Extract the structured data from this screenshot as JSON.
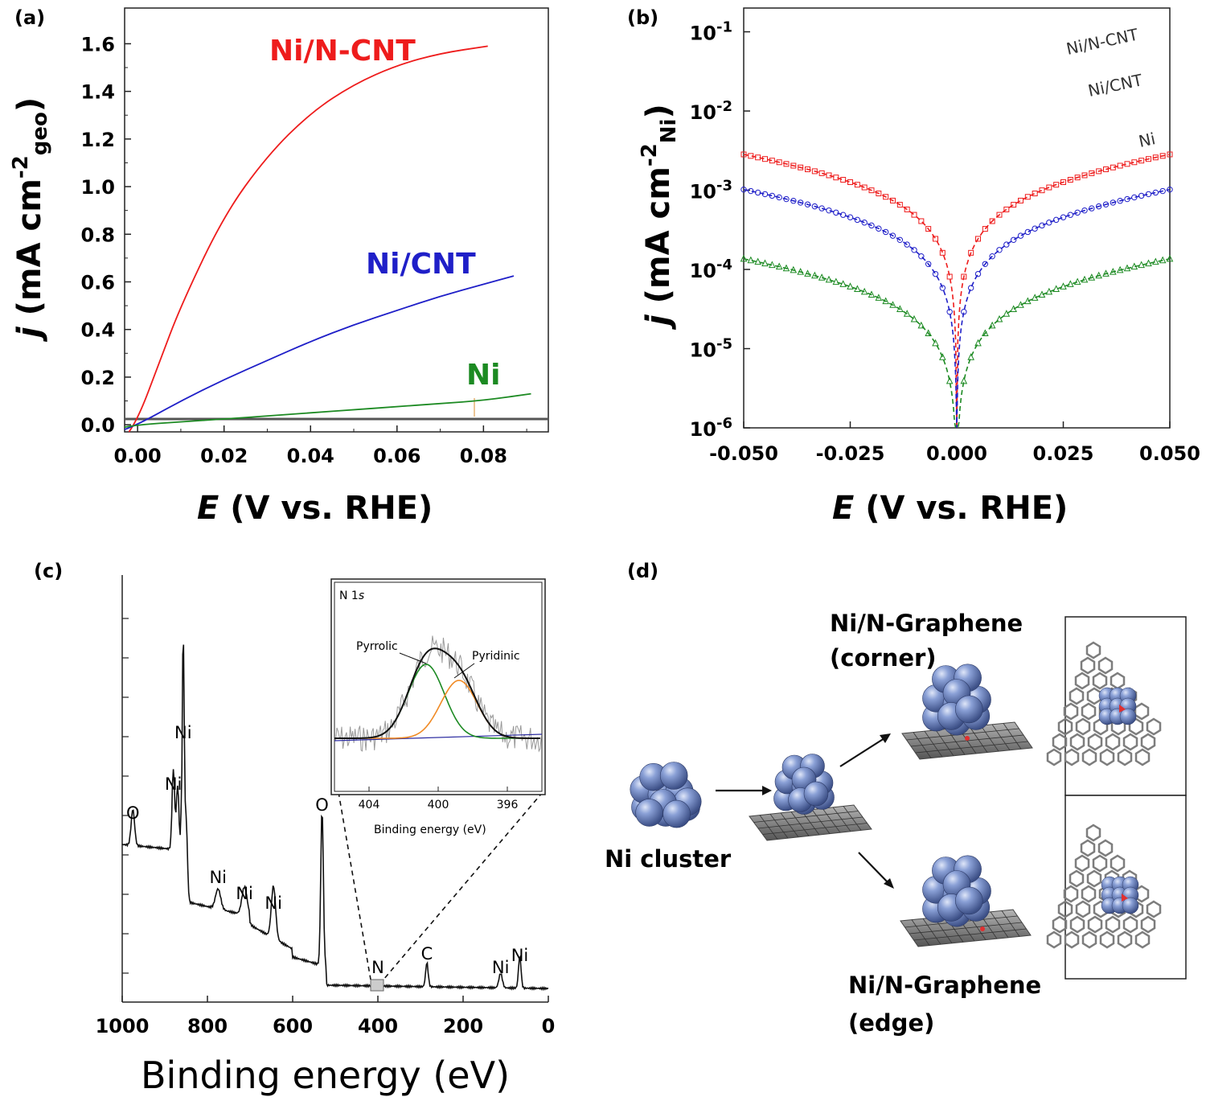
{
  "colors": {
    "red": "#ee1c1c",
    "blue": "#1f1fc8",
    "green": "#1c8a22",
    "black": "#111111",
    "sphere": "#6f86c4",
    "carbon": "#8a8a8a"
  },
  "panels": {
    "a": "(a)",
    "b": "(b)",
    "c": "(c)",
    "d": "(d)"
  },
  "chart_data": [
    {
      "id": "a",
      "type": "line",
      "xlabel_main": "E",
      "xlabel_unit": "(V vs. RHE)",
      "ylabel": "j (mA cm-2geo)",
      "ylabel_j": "j",
      "ylabel_unit": "mA cm",
      "ylabel_sup": "-2",
      "ylabel_sub": "geo",
      "xlim": [
        -0.003,
        0.095
      ],
      "ylim": [
        -0.03,
        1.75
      ],
      "xticks": [
        0.0,
        0.02,
        0.04,
        0.06,
        0.08
      ],
      "xtick_labels": [
        "0.00",
        "0.02",
        "0.04",
        "0.06",
        "0.08"
      ],
      "yticks": [
        0.0,
        0.2,
        0.4,
        0.6,
        0.8,
        1.0,
        1.2,
        1.4,
        1.6
      ],
      "ytick_labels": [
        "0.0",
        "0.2",
        "0.4",
        "0.6",
        "0.8",
        "1.0",
        "1.2",
        "1.4",
        "1.6"
      ],
      "series": [
        {
          "name": "Ni/N-CNT",
          "color": "#ee1c1c",
          "x": [
            -0.002,
            0.0,
            0.005,
            0.01,
            0.02,
            0.03,
            0.04,
            0.05,
            0.06,
            0.07,
            0.081
          ],
          "y": [
            -0.03,
            0.02,
            0.26,
            0.5,
            0.88,
            1.13,
            1.31,
            1.43,
            1.51,
            1.56,
            1.59
          ]
        },
        {
          "name": "Ni/CNT",
          "color": "#1f1fc8",
          "x": [
            -0.003,
            0.0,
            0.01,
            0.02,
            0.03,
            0.04,
            0.05,
            0.06,
            0.07,
            0.08,
            0.087
          ],
          "y": [
            -0.02,
            0.0,
            0.1,
            0.19,
            0.27,
            0.35,
            0.42,
            0.48,
            0.54,
            0.59,
            0.625
          ]
        },
        {
          "name": "Ni",
          "color": "#1c8a22",
          "x": [
            -0.003,
            0.0,
            0.01,
            0.02,
            0.03,
            0.04,
            0.05,
            0.06,
            0.07,
            0.08,
            0.091
          ],
          "y": [
            -0.01,
            0.0,
            0.012,
            0.024,
            0.037,
            0.05,
            0.063,
            0.076,
            0.089,
            0.102,
            0.13
          ]
        }
      ]
    },
    {
      "id": "b",
      "type": "scatter+line",
      "scale": "log",
      "xlabel_main": "E",
      "xlabel_unit": "(V vs. RHE)",
      "ylabel": "j (mA cm-2Ni)",
      "ylabel_j": "j",
      "ylabel_unit": "mA cm",
      "ylabel_sup": "-2",
      "ylabel_sub": "Ni",
      "xlim": [
        -0.05,
        0.05
      ],
      "ylim_exp": [
        -6,
        -0.7
      ],
      "xticks": [
        -0.05,
        -0.025,
        0.0,
        0.025,
        0.05
      ],
      "xtick_labels": [
        "-0.050",
        "-0.025",
        "0.000",
        "0.025",
        "0.050"
      ],
      "yticks_exp": [
        -6,
        -5,
        -4,
        -3,
        -2,
        -1
      ],
      "ytick_base": "10",
      "ytick_sups": [
        "-6",
        "-5",
        "-4",
        "-3",
        "-2",
        "-1"
      ],
      "series": [
        {
          "name": "Ni/N-CNT",
          "color": "#ee1c1c",
          "marker": "square",
          "i0": 0.00125
        },
        {
          "name": "Ni/CNT",
          "color": "#1f1fc8",
          "marker": "circle",
          "i0": 0.00045
        },
        {
          "name": "Ni",
          "color": "#1c8a22",
          "marker": "triangle",
          "i0": 6e-05
        }
      ]
    },
    {
      "id": "c",
      "type": "line",
      "xlabel": "Binding energy (eV)",
      "xlim": [
        1000,
        0
      ],
      "xticks": [
        1000,
        800,
        600,
        400,
        200,
        0
      ],
      "xtick_labels": [
        "1000",
        "800",
        "600",
        "400",
        "200",
        "0"
      ],
      "peaks": [
        {
          "label": "O",
          "x": 975
        },
        {
          "label": "Ni",
          "x": 880
        },
        {
          "label": "Ni",
          "x": 857
        },
        {
          "label": "Ni",
          "x": 775
        },
        {
          "label": "Ni",
          "x": 713
        },
        {
          "label": "Ni",
          "x": 645
        },
        {
          "label": "O",
          "x": 531
        },
        {
          "label": "N",
          "x": 400
        },
        {
          "label": "C",
          "x": 285
        },
        {
          "label": "Ni",
          "x": 112
        },
        {
          "label": "Ni",
          "x": 67
        }
      ],
      "inset": {
        "title": "N 1s",
        "xlabel": "Binding energy (eV)",
        "xlim": [
          406,
          394
        ],
        "xticks": [
          404,
          400,
          396
        ],
        "xtick_labels": [
          "404",
          "400",
          "396"
        ],
        "components": [
          {
            "name": "Pyrrolic",
            "center": 400.7,
            "color": "#1c8a22"
          },
          {
            "name": "Pyridinic",
            "center": 398.8,
            "color": "#f08a24"
          },
          {
            "name": "Envelope",
            "center": 400.0,
            "color": "#111111"
          }
        ]
      }
    }
  ],
  "diagram_d": {
    "cluster_label": "Ni cluster",
    "corner_label_1": "Ni/N-Graphene",
    "corner_label_2": "(corner)",
    "edge_label_1": "Ni/N-Graphene",
    "edge_label_2": "(edge)"
  }
}
